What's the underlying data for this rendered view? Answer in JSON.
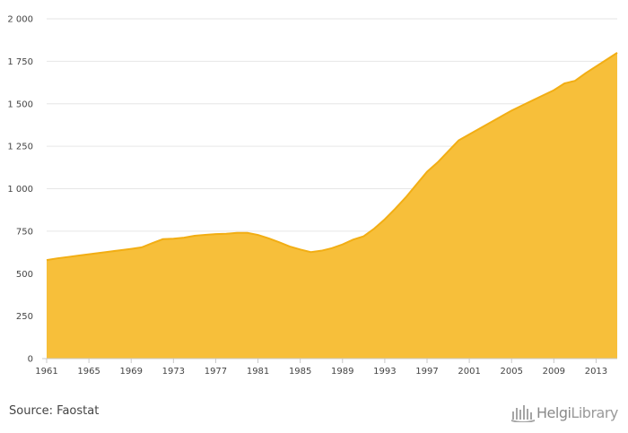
{
  "chart_data": {
    "type": "area",
    "title": "",
    "xlabel": "",
    "ylabel": "",
    "xlim": [
      1961,
      2015
    ],
    "ylim": [
      0,
      2000
    ],
    "y_ticks": [
      0,
      250,
      500,
      750,
      1000,
      1250,
      1500,
      1750,
      2000
    ],
    "y_tick_labels": [
      "0",
      "250",
      "500",
      "750",
      "1 000",
      "1 250",
      "1 500",
      "1 750",
      "2 000"
    ],
    "x_ticks": [
      1961,
      1965,
      1969,
      1973,
      1977,
      1981,
      1985,
      1989,
      1993,
      1997,
      2001,
      2005,
      2009,
      2013
    ],
    "x_tick_labels": [
      "1961",
      "1965",
      "1969",
      "1973",
      "1977",
      "1981",
      "1985",
      "1989",
      "1993",
      "1997",
      "2001",
      "2005",
      "2009",
      "2013"
    ],
    "grid": true,
    "legend": "none",
    "colors": {
      "fill": "#f7bf3a",
      "line": "#f2ae14",
      "grid": "#e6e6e6",
      "axis": "#c8c8c8"
    },
    "series": [
      {
        "x": [
          1961,
          1962,
          1963,
          1964,
          1965,
          1966,
          1967,
          1968,
          1969,
          1970,
          1971,
          1972,
          1973,
          1974,
          1975,
          1976,
          1977,
          1978,
          1979,
          1980,
          1981,
          1982,
          1983,
          1984,
          1985,
          1986,
          1987,
          1988,
          1989,
          1990,
          1991,
          1992,
          1993,
          1994,
          1995,
          1996,
          1997,
          1998,
          1999,
          2000,
          2001,
          2002,
          2003,
          2004,
          2005,
          2006,
          2007,
          2008,
          2009,
          2010,
          2011,
          2012,
          2013,
          2014,
          2015
        ],
        "values": [
          580,
          590,
          598,
          606,
          614,
          622,
          630,
          638,
          646,
          655,
          680,
          703,
          706,
          712,
          723,
          728,
          733,
          735,
          740,
          740,
          728,
          708,
          685,
          660,
          642,
          627,
          635,
          650,
          672,
          700,
          720,
          765,
          820,
          883,
          950,
          1025,
          1100,
          1155,
          1220,
          1285,
          1320,
          1355,
          1390,
          1425,
          1460,
          1490,
          1520,
          1550,
          1580,
          1620,
          1635,
          1680,
          1720,
          1760,
          1800
        ]
      }
    ]
  },
  "footer": {
    "source": "Source: Faostat",
    "logo_text_strong": "Helgi",
    "logo_text": "Library",
    "logo_icon": "helgi-library-logo-icon"
  }
}
